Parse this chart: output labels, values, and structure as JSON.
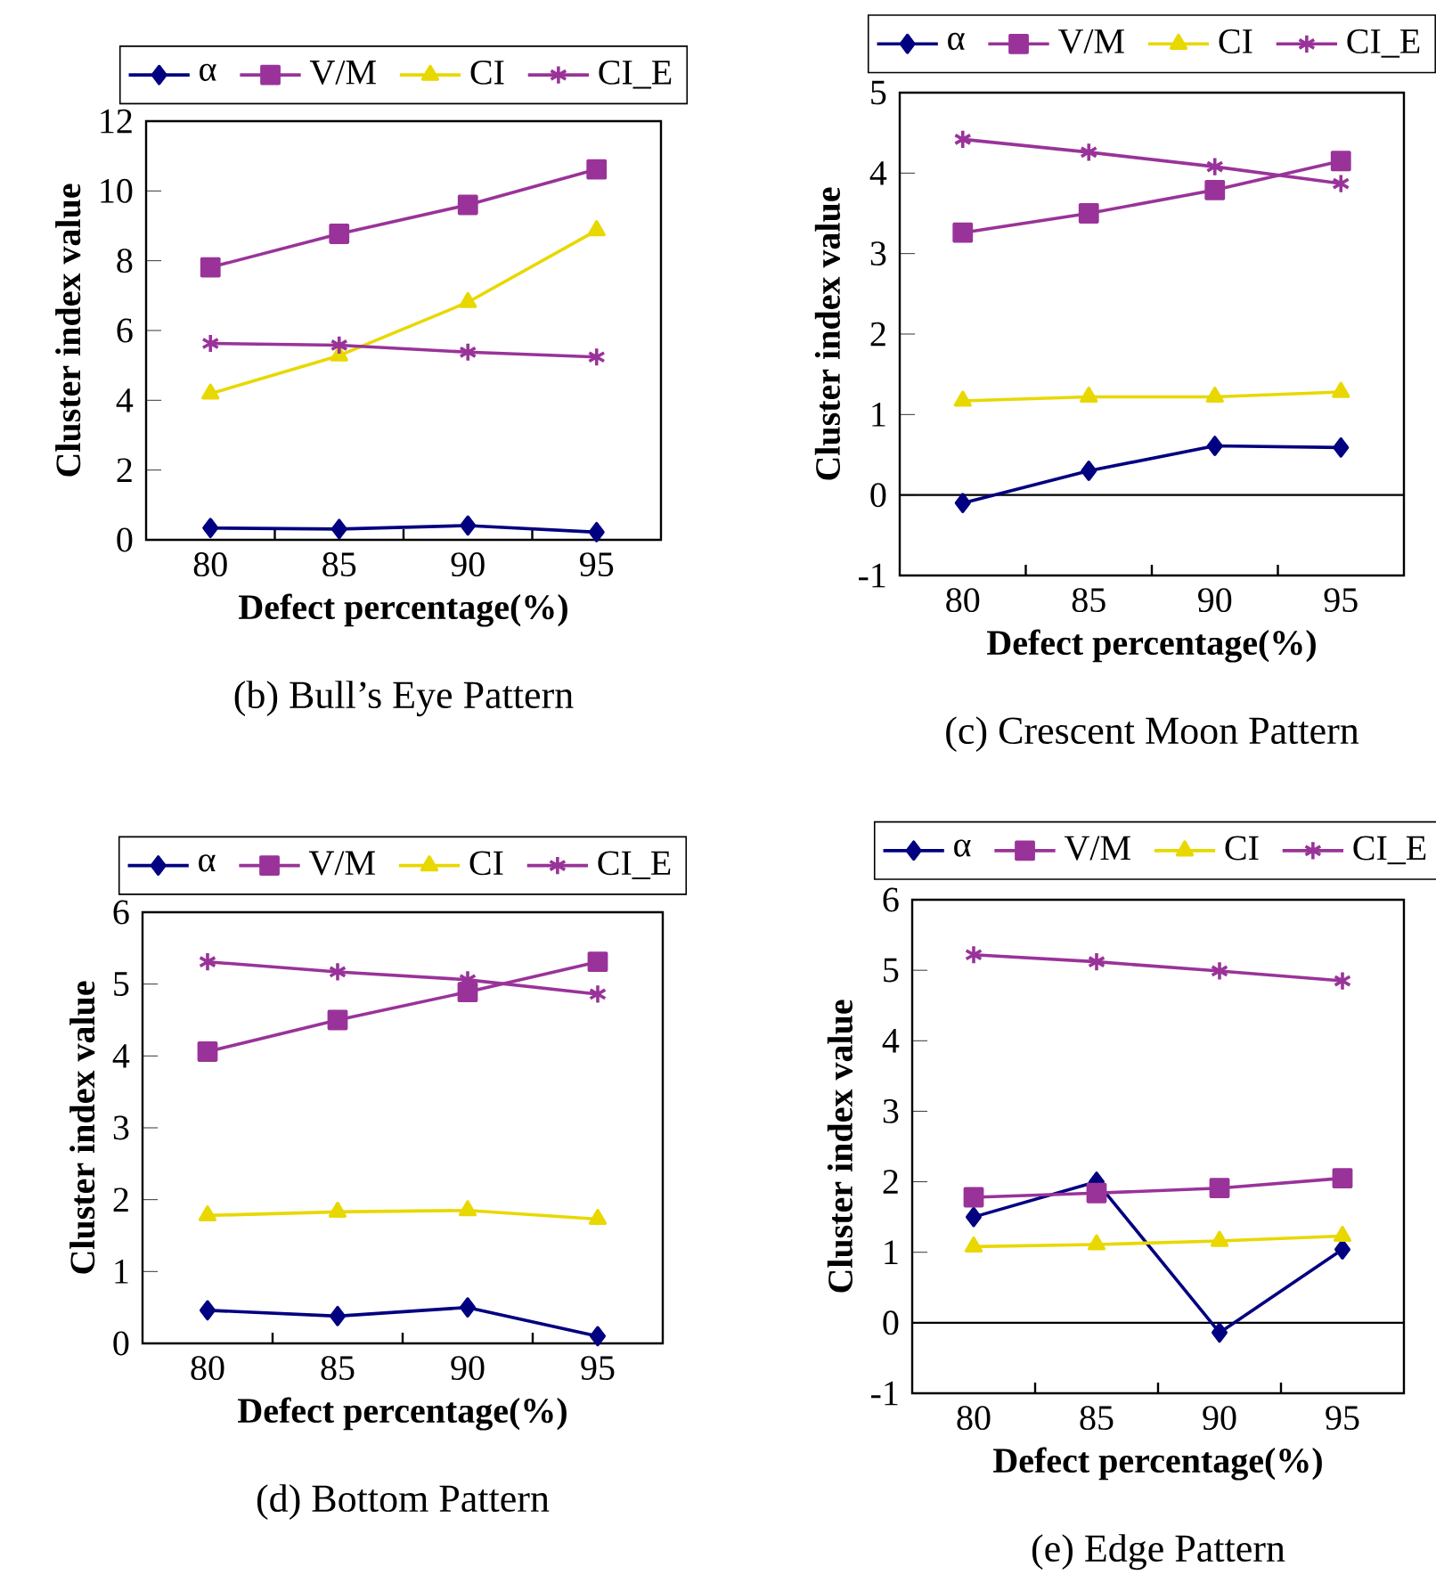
{
  "chart_data": [
    {
      "type": "line",
      "title": "(b) Bull’s Eye Pattern",
      "xlabel": "Defect percentage(%)",
      "ylabel": "Cluster index value",
      "categories": [
        "80",
        "85",
        "90",
        "95"
      ],
      "ylim": [
        0,
        12
      ],
      "yticks": [
        0,
        2,
        4,
        6,
        8,
        10,
        12
      ],
      "legend": "top",
      "grid": false,
      "series": [
        {
          "name": "α",
          "color": "#000080",
          "marker": "diamond",
          "values": [
            0.34,
            0.31,
            0.41,
            0.22
          ]
        },
        {
          "name": "V/M",
          "color": "#993399",
          "marker": "square",
          "values": [
            7.81,
            8.77,
            9.6,
            10.62
          ]
        },
        {
          "name": "CI",
          "color": "#e8d800",
          "marker": "triangle",
          "values": [
            4.19,
            5.28,
            6.81,
            8.87
          ]
        },
        {
          "name": "CI_E",
          "color": "#993399",
          "marker": "cross",
          "values": [
            5.63,
            5.58,
            5.38,
            5.24
          ]
        }
      ]
    },
    {
      "type": "line",
      "title": "(c) Crescent Moon Pattern",
      "xlabel": "Defect percentage(%)",
      "ylabel": "Cluster index value",
      "categories": [
        "80",
        "85",
        "90",
        "95"
      ],
      "ylim": [
        -1,
        5
      ],
      "yticks": [
        -1,
        0,
        1,
        2,
        3,
        4,
        5
      ],
      "legend": "top",
      "grid": false,
      "ref_lines": [
        {
          "axis": "y",
          "value": 0
        }
      ],
      "series": [
        {
          "name": "α",
          "color": "#000080",
          "marker": "diamond",
          "values": [
            -0.1,
            0.3,
            0.61,
            0.59
          ]
        },
        {
          "name": "V/M",
          "color": "#993399",
          "marker": "square",
          "values": [
            3.26,
            3.5,
            3.79,
            4.15
          ]
        },
        {
          "name": "CI",
          "color": "#e8d800",
          "marker": "triangle",
          "values": [
            1.17,
            1.22,
            1.22,
            1.28
          ]
        },
        {
          "name": "CI_E",
          "color": "#993399",
          "marker": "cross",
          "values": [
            4.42,
            4.26,
            4.08,
            3.87
          ]
        }
      ]
    },
    {
      "type": "line",
      "title": "(d) Bottom Pattern",
      "xlabel": "Defect percentage(%)",
      "ylabel": "Cluster index value",
      "categories": [
        "80",
        "85",
        "90",
        "95"
      ],
      "ylim": [
        0,
        6
      ],
      "yticks": [
        0,
        1,
        2,
        3,
        4,
        5,
        6
      ],
      "legend": "top",
      "grid": false,
      "series": [
        {
          "name": "α",
          "color": "#000080",
          "marker": "diamond",
          "values": [
            0.46,
            0.38,
            0.5,
            0.1
          ]
        },
        {
          "name": "V/M",
          "color": "#993399",
          "marker": "square",
          "values": [
            4.06,
            4.5,
            4.89,
            5.31
          ]
        },
        {
          "name": "CI",
          "color": "#e8d800",
          "marker": "triangle",
          "values": [
            1.78,
            1.83,
            1.85,
            1.73
          ]
        },
        {
          "name": "CI_E",
          "color": "#993399",
          "marker": "cross",
          "values": [
            5.31,
            5.17,
            5.06,
            4.86
          ]
        }
      ]
    },
    {
      "type": "line",
      "title": "(e) Edge Pattern",
      "xlabel": "Defect percentage(%)",
      "ylabel": "Cluster index value",
      "categories": [
        "80",
        "85",
        "90",
        "95"
      ],
      "ylim": [
        -1,
        6
      ],
      "yticks": [
        -1,
        0,
        1,
        2,
        3,
        4,
        5,
        6
      ],
      "legend": "top",
      "grid": false,
      "ref_lines": [
        {
          "axis": "y",
          "value": 0
        }
      ],
      "series": [
        {
          "name": "α",
          "color": "#000080",
          "marker": "diamond",
          "values": [
            1.5,
            2.0,
            -0.14,
            1.04
          ]
        },
        {
          "name": "V/M",
          "color": "#993399",
          "marker": "square",
          "values": [
            1.78,
            1.84,
            1.91,
            2.05
          ]
        },
        {
          "name": "CI",
          "color": "#e8d800",
          "marker": "triangle",
          "values": [
            1.08,
            1.11,
            1.16,
            1.23
          ]
        },
        {
          "name": "CI_E",
          "color": "#993399",
          "marker": "cross",
          "values": [
            5.22,
            5.12,
            4.99,
            4.85
          ]
        }
      ]
    }
  ]
}
